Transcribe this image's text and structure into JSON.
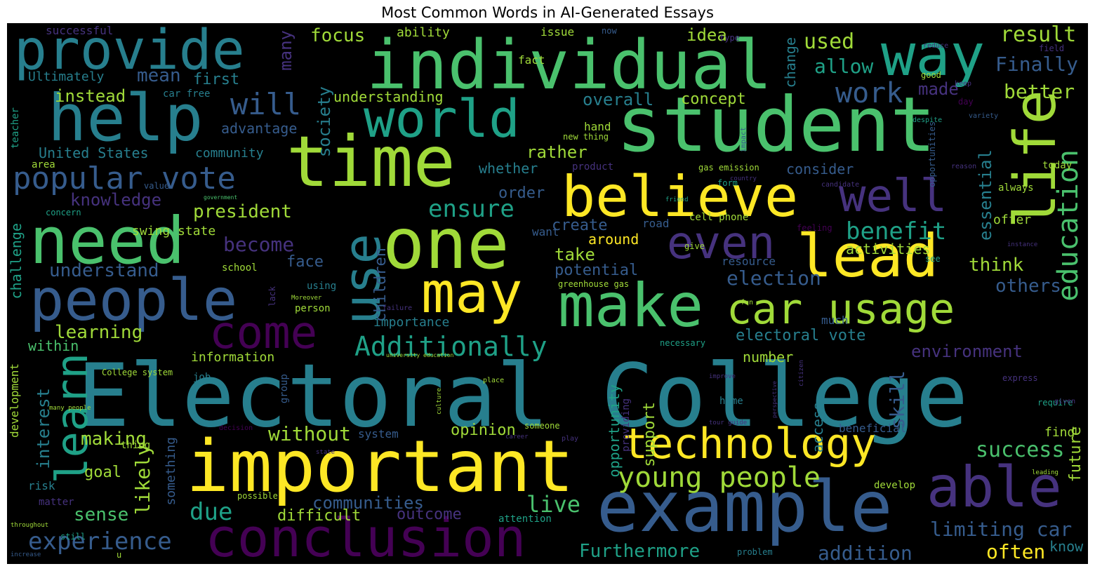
{
  "title": "Most Common Words in AI-Generated Essays",
  "palette": {
    "purple": "#440154",
    "indigo": "#46327e",
    "slate": "#365c8d",
    "teal": "#277f8e",
    "green": "#1fa187",
    "lime": "#4ac16d",
    "yellowgreen": "#a0da39",
    "yellow": "#fde725"
  },
  "words": {
    "electoral_college": "Electoral College",
    "student": "student",
    "individual": "individual",
    "important": "important",
    "time": "time",
    "one": "one",
    "example": "example",
    "need": "need",
    "help": "help",
    "people": "people",
    "provide": "provide",
    "make": "make",
    "world": "world",
    "believe": "believe",
    "conclusion": "conclusion",
    "way": "way",
    "lead": "lead",
    "may": "may",
    "use": "use",
    "life": "life",
    "technology": "technology",
    "car_usage": "car usage",
    "able": "able",
    "learn": "learn",
    "come": "come",
    "even": "even",
    "well": "well",
    "education": "education",
    "popular_vote": "popular vote",
    "additionally": "Additionally",
    "young_people": "young people",
    "will": "will",
    "work": "work",
    "experience": "experience",
    "result": "result",
    "ensure": "ensure",
    "benefit": "benefit",
    "focus": "focus",
    "used": "used",
    "allow": "allow",
    "finally": "Finally",
    "made": "made",
    "better": "better",
    "live": "live",
    "due": "due",
    "success": "success",
    "limiting_car": "limiting car",
    "often": "often",
    "addition": "addition",
    "furthermore": "Furthermore",
    "without": "without",
    "communities": "communities",
    "likely": "likely",
    "president": "president",
    "become": "become",
    "mean": "mean",
    "ultimately": "Ultimately",
    "instead": "instead",
    "first": "first",
    "learning": "learning",
    "understand": "understand",
    "knowledge": "knowledge",
    "united_states": "United States",
    "community": "community",
    "advantage": "advantage",
    "within": "within",
    "interest": "interest",
    "making": "making",
    "goal": "goal",
    "sense": "sense",
    "outcome": "outcome",
    "difficult": "difficult",
    "opinion": "opinion",
    "environment": "environment",
    "electoral_vote": "electoral vote",
    "election": "election",
    "skill": "skill",
    "others": "others",
    "think": "think",
    "activities": "activities",
    "essential": "essential",
    "consider": "consider",
    "education_v": "education",
    "society": "society",
    "many": "many",
    "children": "children",
    "understanding": "understanding",
    "overall": "overall",
    "concept": "concept",
    "idea": "idea",
    "change": "change",
    "rather": "rather",
    "whether": "whether",
    "order": "order",
    "create": "create",
    "take": "take",
    "potential": "potential",
    "face": "face",
    "around": "around",
    "support": "support",
    "opportunity": "opportunity",
    "importance": "importance",
    "information": "information",
    "number": "number",
    "access": "access",
    "future": "future",
    "know": "know",
    "find": "find",
    "offer": "offer",
    "swing_state": "swing state",
    "challenge": "challenge",
    "development": "development",
    "ability": "ability",
    "issue": "issue",
    "fact": "fact",
    "successful": "successful",
    "car_free": "car free",
    "hand": "hand",
    "cell_phone": "cell phone",
    "resource": "resource",
    "road": "road",
    "want": "want",
    "much": "much",
    "job": "job",
    "person": "person",
    "using": "using",
    "school": "school",
    "system": "system",
    "something": "something",
    "beneficial": "beneficial",
    "develop": "develop",
    "attention": "attention",
    "providing": "providing",
    "group": "group",
    "home": "home",
    "risk": "risk",
    "matter": "matter",
    "thing": "thing",
    "teacher": "teacher",
    "area": "area",
    "concern": "concern",
    "value": "value",
    "form": "form",
    "gas_emission": "gas emission",
    "product": "product",
    "greenhouse_gas": "greenhouse gas",
    "new_thing": "new thing",
    "day": "day",
    "type": "type",
    "now": "now",
    "field": "field",
    "good": "good",
    "today": "today",
    "always": "always",
    "feeling": "feeling",
    "see": "see",
    "give": "give",
    "necessary": "necessary",
    "require": "require",
    "possible": "possible",
    "still": "still",
    "lack": "lack",
    "someone": "someone",
    "college_system": "College system",
    "opportunities": "opportunities",
    "despite": "despite",
    "variety": "variety",
    "impact": "impact",
    "reduce": "reduce",
    "keep": "keep",
    "candidate": "candidate",
    "reason": "reason",
    "government": "government",
    "country": "country",
    "friend": "friend",
    "instance": "instance",
    "moreover": "Moreover",
    "fun": "fun",
    "failure": "failure",
    "express": "express",
    "given": "given",
    "leading": "leading",
    "improve": "improve",
    "citizen": "citizen",
    "perspective": "perspective",
    "place": "place",
    "culture": "culture",
    "university_education": "university education",
    "many_people": "many people",
    "tour_guide": "tour guide",
    "decision": "decision",
    "career": "career",
    "play": "play",
    "state": "state",
    "problem": "problem",
    "throughout": "throughout",
    "increase": "increase",
    "u": "u"
  }
}
